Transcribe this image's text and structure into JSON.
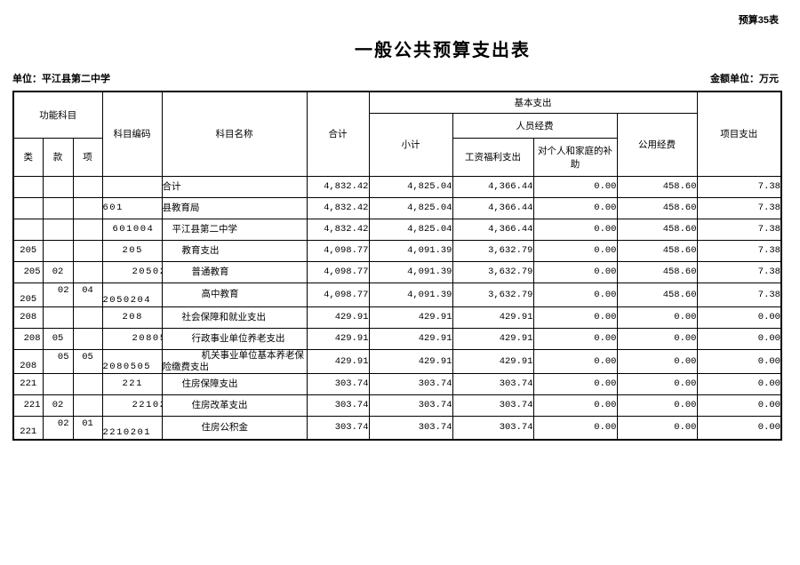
{
  "page": {
    "tag": "预算35表",
    "title": "一般公共预算支出表",
    "unit_label": "单位：平江县第二中学",
    "amount_unit_label": "金额单位：万元"
  },
  "table": {
    "header": {
      "func_group": "功能科目",
      "lei": "类",
      "kuan": "款",
      "xiang": "项",
      "code": "科目编码",
      "name": "科目名称",
      "total": "合计",
      "basic": "基本支出",
      "subtotal": "小计",
      "personnel": "人员经费",
      "wage": "工资福利支出",
      "family_subsidy": "对个人和家庭的补助",
      "public_funds": "公用经费",
      "project": "项目支出"
    },
    "rows": [
      {
        "lei": "",
        "kuan": "",
        "xiang": "",
        "code": "",
        "name": "合计",
        "level": 0,
        "tall": false,
        "values": [
          "4,832.42",
          "4,825.04",
          "4,366.44",
          "0.00",
          "458.60",
          "7.38"
        ]
      },
      {
        "lei": "",
        "kuan": "",
        "xiang": "",
        "code": "601",
        "name": "县教育局",
        "level": 0,
        "tall": false,
        "values": [
          "4,832.42",
          "4,825.04",
          "4,366.44",
          "0.00",
          "458.60",
          "7.38"
        ]
      },
      {
        "lei": "",
        "kuan": "",
        "xiang": "",
        "code": "601004",
        "name": "平江县第二中学",
        "level": 1,
        "tall": false,
        "values": [
          "4,832.42",
          "4,825.04",
          "4,366.44",
          "0.00",
          "458.60",
          "7.38"
        ]
      },
      {
        "lei": "205",
        "kuan": "",
        "xiang": "",
        "code": "205",
        "name": "教育支出",
        "level": 2,
        "tall": false,
        "values": [
          "4,098.77",
          "4,091.39",
          "3,632.79",
          "0.00",
          "458.60",
          "7.38"
        ]
      },
      {
        "lei": "205",
        "kuan": "02",
        "xiang": "",
        "code": "20502",
        "name": "普通教育",
        "level": 3,
        "tall": false,
        "values": [
          "4,098.77",
          "4,091.39",
          "3,632.79",
          "0.00",
          "458.60",
          "7.38"
        ]
      },
      {
        "lei": "205",
        "kuan": "02",
        "xiang": "04",
        "code": "2050204",
        "name": "高中教育",
        "level": 4,
        "tall": true,
        "values": [
          "4,098.77",
          "4,091.39",
          "3,632.79",
          "0.00",
          "458.60",
          "7.38"
        ]
      },
      {
        "lei": "208",
        "kuan": "",
        "xiang": "",
        "code": "208",
        "name": "社会保障和就业支出",
        "level": 2,
        "tall": false,
        "values": [
          "429.91",
          "429.91",
          "429.91",
          "0.00",
          "0.00",
          "0.00"
        ]
      },
      {
        "lei": "208",
        "kuan": "05",
        "xiang": "",
        "code": "20805",
        "name": "行政事业单位养老支出",
        "level": 3,
        "tall": false,
        "values": [
          "429.91",
          "429.91",
          "429.91",
          "0.00",
          "0.00",
          "0.00"
        ]
      },
      {
        "lei": "208",
        "kuan": "05",
        "xiang": "05",
        "code": "2080505",
        "name": "机关事业单位基本养老保险缴费支出",
        "level": 4,
        "tall": true,
        "values": [
          "429.91",
          "429.91",
          "429.91",
          "0.00",
          "0.00",
          "0.00"
        ]
      },
      {
        "lei": "221",
        "kuan": "",
        "xiang": "",
        "code": "221",
        "name": "住房保障支出",
        "level": 2,
        "tall": false,
        "values": [
          "303.74",
          "303.74",
          "303.74",
          "0.00",
          "0.00",
          "0.00"
        ]
      },
      {
        "lei": "221",
        "kuan": "02",
        "xiang": "",
        "code": "22102",
        "name": "住房改革支出",
        "level": 3,
        "tall": false,
        "values": [
          "303.74",
          "303.74",
          "303.74",
          "0.00",
          "0.00",
          "0.00"
        ]
      },
      {
        "lei": "221",
        "kuan": "02",
        "xiang": "01",
        "code": "2210201",
        "name": "住房公积金",
        "level": 4,
        "tall": true,
        "values": [
          "303.74",
          "303.74",
          "303.74",
          "0.00",
          "0.00",
          "0.00"
        ]
      }
    ]
  }
}
